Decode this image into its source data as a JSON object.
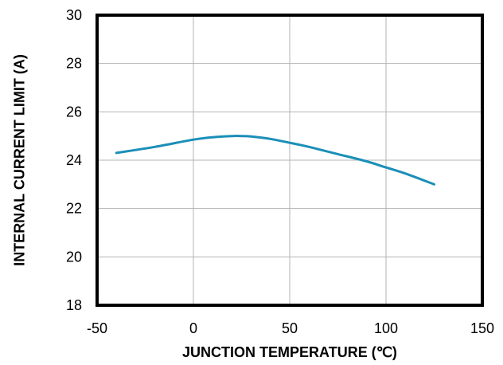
{
  "chart_data": {
    "type": "line",
    "title": "",
    "xlabel": "JUNCTION TEMPERATURE (℃)",
    "ylabel": "INTERNAL CURRENT LIMIT (A)",
    "xlim": [
      -50,
      150
    ],
    "ylim": [
      18,
      30
    ],
    "xticks": [
      "-50",
      "0",
      "50",
      "100",
      "150"
    ],
    "yticks": [
      "18",
      "20",
      "22",
      "24",
      "26",
      "28",
      "30"
    ],
    "grid": true,
    "series": [
      {
        "color": "#1b8fb8",
        "x": [
          -40,
          -20,
          0,
          10,
          20,
          25,
          30,
          40,
          50,
          60,
          75,
          90,
          100,
          110,
          125
        ],
        "y": [
          24.3,
          24.55,
          24.85,
          24.95,
          25.0,
          25.0,
          24.98,
          24.88,
          24.72,
          24.55,
          24.25,
          23.95,
          23.7,
          23.45,
          23.0
        ]
      }
    ]
  }
}
